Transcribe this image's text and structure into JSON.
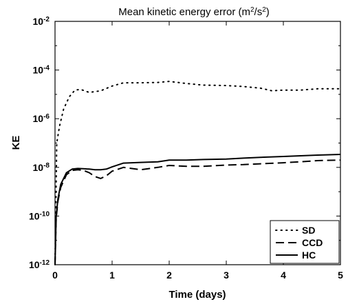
{
  "chart_data": {
    "type": "line",
    "title": "Mean kinetic energy error (m²/s²)",
    "xlabel": "Time (days)",
    "ylabel": "KE",
    "xlim": [
      0,
      5
    ],
    "ylim": [
      1e-12,
      0.01
    ],
    "yscale": "log",
    "grid": false,
    "legend_position": "bottom-right",
    "x_ticks": [
      0,
      1,
      2,
      3,
      4,
      5
    ],
    "x_tick_labels": [
      "0",
      "1",
      "2",
      "3",
      "4",
      "5"
    ],
    "y_tick_exponents": [
      -2,
      -4,
      -6,
      -8,
      -10,
      -12
    ],
    "series": [
      {
        "name": "SD",
        "style": "dotted",
        "x": [
          0,
          0.03,
          0.08,
          0.15,
          0.25,
          0.35,
          0.45,
          0.6,
          0.8,
          1.0,
          1.2,
          1.5,
          1.8,
          2.0,
          2.3,
          2.6,
          3.0,
          3.3,
          3.6,
          3.8,
          4.0,
          4.3,
          4.6,
          5.0
        ],
        "y": [
          1e-12,
          1e-07,
          5e-07,
          2.5e-06,
          8e-06,
          1.5e-05,
          1.6e-05,
          1.2e-05,
          1.4e-05,
          2.2e-05,
          3e-05,
          3e-05,
          3.1e-05,
          3.4e-05,
          2.8e-05,
          2.4e-05,
          2.3e-05,
          2.1e-05,
          1.8e-05,
          1.4e-05,
          1.5e-05,
          1.5e-05,
          1.7e-05,
          1.7e-05
        ]
      },
      {
        "name": "CCD",
        "style": "dashed",
        "x": [
          0,
          0.02,
          0.05,
          0.1,
          0.2,
          0.3,
          0.4,
          0.5,
          0.6,
          0.7,
          0.8,
          0.9,
          1.0,
          1.2,
          1.5,
          1.8,
          2.0,
          2.3,
          2.6,
          3.0,
          3.3,
          3.6,
          4.0,
          4.3,
          4.6,
          5.0
        ],
        "y": [
          1e-12,
          8e-11,
          4e-10,
          1.5e-09,
          5e-09,
          7.5e-09,
          8e-09,
          7.5e-09,
          6e-09,
          4.2e-09,
          3.5e-09,
          4.5e-09,
          7e-09,
          1e-08,
          8e-09,
          1e-08,
          1.2e-08,
          1.1e-08,
          1.1e-08,
          1.25e-08,
          1.3e-08,
          1.4e-08,
          1.55e-08,
          1.7e-08,
          1.9e-08,
          2e-08
        ]
      },
      {
        "name": "HC",
        "style": "solid",
        "x": [
          0,
          0.02,
          0.05,
          0.1,
          0.2,
          0.3,
          0.4,
          0.5,
          0.6,
          0.7,
          0.8,
          0.9,
          1.0,
          1.2,
          1.5,
          1.8,
          2.0,
          2.3,
          2.6,
          3.0,
          3.3,
          3.6,
          4.0,
          4.3,
          4.6,
          5.0
        ],
        "y": [
          1e-12,
          1e-10,
          5e-10,
          2e-09,
          6e-09,
          8.5e-09,
          9e-09,
          8.8e-09,
          8.5e-09,
          8e-09,
          8e-09,
          8.5e-09,
          1.05e-08,
          1.5e-08,
          1.6e-08,
          1.7e-08,
          2e-08,
          2e-08,
          2.1e-08,
          2.2e-08,
          2.4e-08,
          2.6e-08,
          2.8e-08,
          3e-08,
          3.2e-08,
          3.4e-08
        ]
      }
    ]
  }
}
